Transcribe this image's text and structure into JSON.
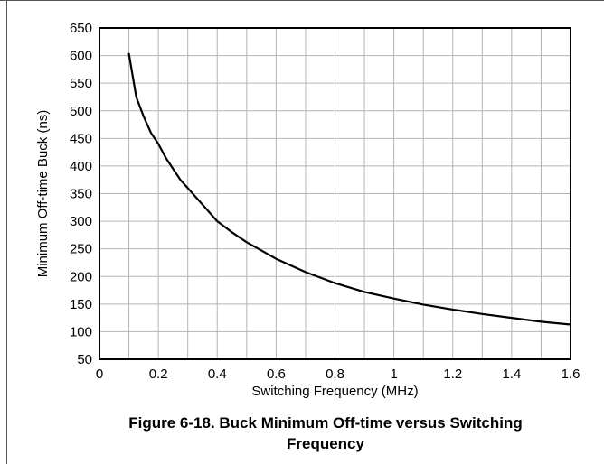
{
  "chart_data": {
    "type": "line",
    "xlabel": "Switching Frequency (MHz)",
    "ylabel": "Minimum Off-time Buck (ns)",
    "xlim": [
      0,
      1.6
    ],
    "ylim": [
      50,
      650
    ],
    "xticks": [
      "0",
      "0.2",
      "0.4",
      "0.6",
      "0.8",
      "1",
      "1.2",
      "1.4",
      "1.6"
    ],
    "yticks": [
      "50",
      "100",
      "150",
      "200",
      "250",
      "300",
      "350",
      "400",
      "450",
      "500",
      "550",
      "600",
      "650"
    ],
    "grid": true,
    "series": [
      {
        "color": "#000000",
        "x": [
          0.1,
          0.125,
          0.15,
          0.175,
          0.2,
          0.225,
          0.25,
          0.275,
          0.3,
          0.35,
          0.4,
          0.45,
          0.5,
          0.6,
          0.7,
          0.8,
          0.9,
          1.0,
          1.1,
          1.2,
          1.3,
          1.4,
          1.5,
          1.6
        ],
        "y": [
          603,
          525,
          490,
          460,
          440,
          415,
          395,
          375,
          360,
          330,
          300,
          280,
          262,
          232,
          208,
          188,
          172,
          160,
          149,
          140,
          132,
          125,
          118,
          113
        ]
      }
    ]
  },
  "caption": {
    "line1": "Figure 6-18. Buck Minimum Off-time versus Switching",
    "line2": "Frequency"
  }
}
